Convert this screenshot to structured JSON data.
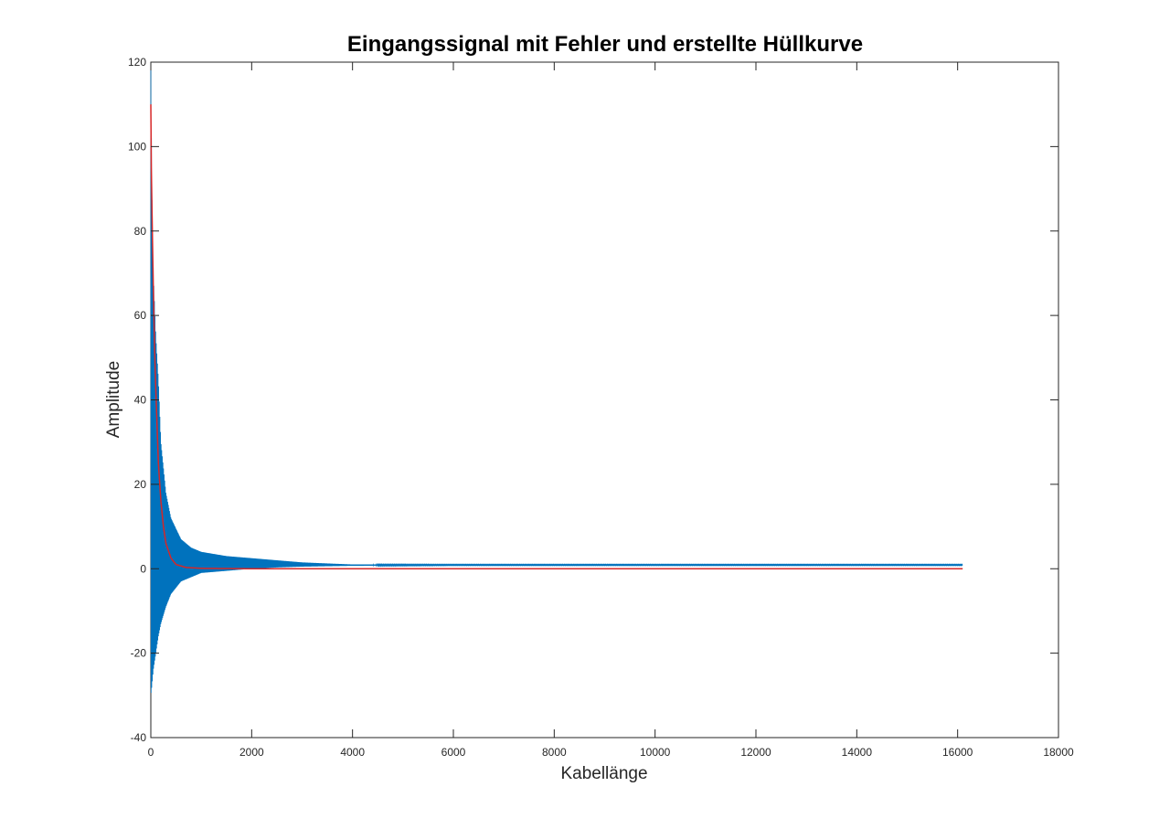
{
  "chart_data": {
    "type": "line",
    "title": "Eingangssignal mit Fehler und erstellte Hüllkurve",
    "xlabel": "Kabellänge",
    "ylabel": "Amplitude",
    "xlim": [
      0,
      18000
    ],
    "ylim": [
      -40,
      120
    ],
    "xticks": [
      0,
      2000,
      4000,
      6000,
      8000,
      10000,
      12000,
      14000,
      16000,
      18000
    ],
    "yticks": [
      -40,
      -20,
      0,
      20,
      40,
      60,
      80,
      100,
      120
    ],
    "xtick_labels": [
      "0",
      "2000",
      "4000",
      "6000",
      "8000",
      "10000",
      "12000",
      "14000",
      "16000",
      "18000"
    ],
    "ytick_labels": [
      "-40",
      "-20",
      "0",
      "20",
      "40",
      "60",
      "80",
      "100",
      "120"
    ],
    "grid": false,
    "series": [
      {
        "color": "#0072BD",
        "style": "oscillating signal decaying toward a small constant offset",
        "x": [
          0,
          20,
          50,
          100,
          150,
          200,
          300,
          400,
          600,
          800,
          1000,
          1500,
          2000,
          2500,
          3000,
          4000,
          6000,
          8000,
          10000,
          12000,
          14000,
          16100
        ],
        "upper": [
          120,
          90,
          70,
          55,
          45,
          30,
          18,
          12,
          7,
          5,
          4,
          3,
          2.5,
          2,
          1.5,
          1,
          1,
          1,
          1,
          1,
          1,
          1
        ],
        "lower": [
          -30,
          -28,
          -24,
          -20,
          -16,
          -13,
          -9,
          -6,
          -3,
          -2,
          -1,
          -0.5,
          0,
          0.3,
          0.5,
          0.7,
          0.8,
          0.8,
          0.8,
          0.8,
          0.8,
          0.8
        ]
      },
      {
        "color": "#D62728",
        "style": "envelope curve",
        "x": [
          0,
          10,
          30,
          50,
          75,
          100,
          150,
          200,
          250,
          300,
          400,
          500,
          700,
          1000,
          2000,
          4000,
          8000,
          12000,
          16100
        ],
        "values": [
          110,
          95,
          80,
          66,
          52,
          42,
          25,
          16,
          10,
          6,
          2.5,
          1,
          0.3,
          0.1,
          0,
          0,
          0,
          0,
          0
        ]
      }
    ]
  }
}
